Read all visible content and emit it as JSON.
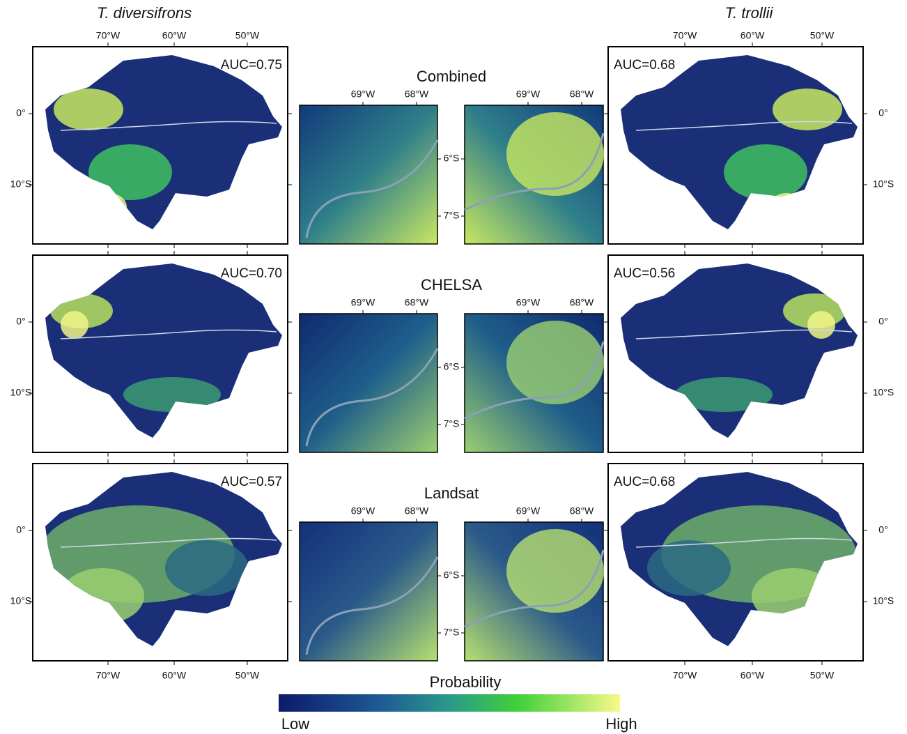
{
  "species": [
    "T. diversifrons",
    "T. trollii"
  ],
  "rows": [
    {
      "title": "Combined",
      "auc": [
        "AUC=0.75",
        "AUC=0.68"
      ]
    },
    {
      "title": "CHELSA",
      "auc": [
        "AUC=0.70",
        "AUC=0.56"
      ]
    },
    {
      "title": "Landsat",
      "auc": [
        "AUC=0.57",
        "AUC=0.68"
      ]
    }
  ],
  "map_axes": {
    "x_labels": [
      "70°W",
      "60°W",
      "50°W"
    ],
    "y_labels": [
      "0°",
      "10°S"
    ]
  },
  "inset_axes": {
    "x_labels": [
      "69°W",
      "68°W"
    ],
    "y_labels": [
      "6°S",
      "7°S"
    ]
  },
  "legend": {
    "title": "Probability",
    "low": "Low",
    "high": "High"
  }
}
